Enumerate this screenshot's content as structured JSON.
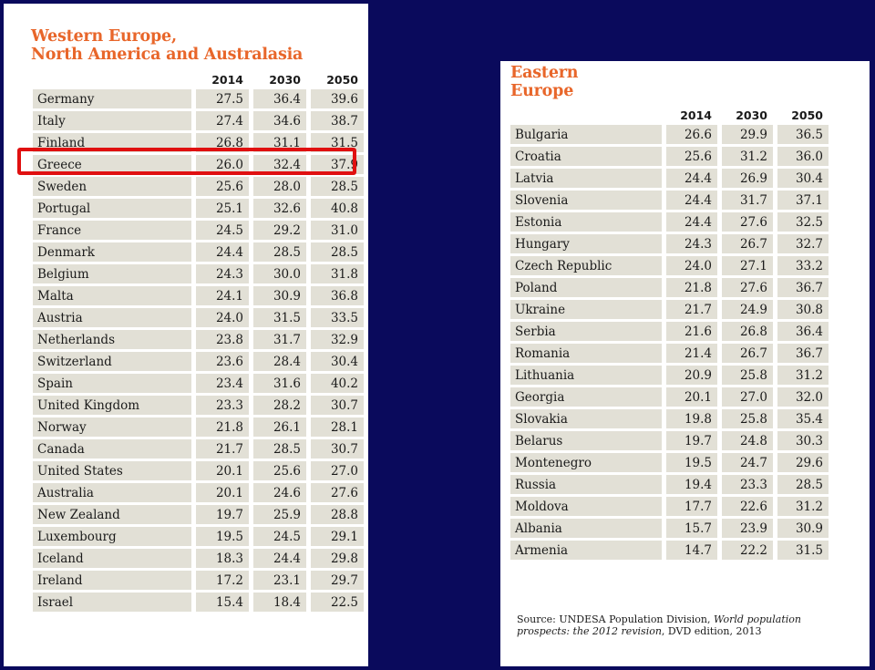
{
  "western": {
    "title_line1": "Western Europe,",
    "title_line2": "North America and Australasia",
    "years": [
      "2014",
      "2030",
      "2050"
    ],
    "rows": [
      {
        "country": "Germany",
        "v2014": "27.5",
        "v2030": "36.4",
        "v2050": "39.6"
      },
      {
        "country": "Italy",
        "v2014": "27.4",
        "v2030": "34.6",
        "v2050": "38.7"
      },
      {
        "country": "Finland",
        "v2014": "26.8",
        "v2030": "31.1",
        "v2050": "31.5"
      },
      {
        "country": "Greece",
        "v2014": "26.0",
        "v2030": "32.4",
        "v2050": "37.9"
      },
      {
        "country": "Sweden",
        "v2014": "25.6",
        "v2030": "28.0",
        "v2050": "28.5"
      },
      {
        "country": "Portugal",
        "v2014": "25.1",
        "v2030": "32.6",
        "v2050": "40.8"
      },
      {
        "country": "France",
        "v2014": "24.5",
        "v2030": "29.2",
        "v2050": "31.0"
      },
      {
        "country": "Denmark",
        "v2014": "24.4",
        "v2030": "28.5",
        "v2050": "28.5"
      },
      {
        "country": "Belgium",
        "v2014": "24.3",
        "v2030": "30.0",
        "v2050": "31.8"
      },
      {
        "country": "Malta",
        "v2014": "24.1",
        "v2030": "30.9",
        "v2050": "36.8"
      },
      {
        "country": "Austria",
        "v2014": "24.0",
        "v2030": "31.5",
        "v2050": "33.5"
      },
      {
        "country": "Netherlands",
        "v2014": "23.8",
        "v2030": "31.7",
        "v2050": "32.9"
      },
      {
        "country": "Switzerland",
        "v2014": "23.6",
        "v2030": "28.4",
        "v2050": "30.4"
      },
      {
        "country": "Spain",
        "v2014": "23.4",
        "v2030": "31.6",
        "v2050": "40.2"
      },
      {
        "country": "United Kingdom",
        "v2014": "23.3",
        "v2030": "28.2",
        "v2050": "30.7"
      },
      {
        "country": "Norway",
        "v2014": "21.8",
        "v2030": "26.1",
        "v2050": "28.1"
      },
      {
        "country": "Canada",
        "v2014": "21.7",
        "v2030": "28.5",
        "v2050": "30.7"
      },
      {
        "country": "United States",
        "v2014": "20.1",
        "v2030": "25.6",
        "v2050": "27.0"
      },
      {
        "country": "Australia",
        "v2014": "20.1",
        "v2030": "24.6",
        "v2050": "27.6"
      },
      {
        "country": "New Zealand",
        "v2014": "19.7",
        "v2030": "25.9",
        "v2050": "28.8"
      },
      {
        "country": "Luxembourg",
        "v2014": "19.5",
        "v2030": "24.5",
        "v2050": "29.1"
      },
      {
        "country": "Iceland",
        "v2014": "18.3",
        "v2030": "24.4",
        "v2050": "29.8"
      },
      {
        "country": "Ireland",
        "v2014": "17.2",
        "v2030": "23.1",
        "v2050": "29.7"
      },
      {
        "country": "Israel",
        "v2014": "15.4",
        "v2030": "18.4",
        "v2050": "22.5"
      }
    ]
  },
  "eastern": {
    "title_line1": "Eastern",
    "title_line2": "Europe",
    "years": [
      "2014",
      "2030",
      "2050"
    ],
    "rows": [
      {
        "country": "Bulgaria",
        "v2014": "26.6",
        "v2030": "29.9",
        "v2050": "36.5"
      },
      {
        "country": "Croatia",
        "v2014": "25.6",
        "v2030": "31.2",
        "v2050": "36.0"
      },
      {
        "country": "Latvia",
        "v2014": "24.4",
        "v2030": "26.9",
        "v2050": "30.4"
      },
      {
        "country": "Slovenia",
        "v2014": "24.4",
        "v2030": "31.7",
        "v2050": "37.1"
      },
      {
        "country": "Estonia",
        "v2014": "24.4",
        "v2030": "27.6",
        "v2050": "32.5"
      },
      {
        "country": "Hungary",
        "v2014": "24.3",
        "v2030": "26.7",
        "v2050": "32.7"
      },
      {
        "country": "Czech Republic",
        "v2014": "24.0",
        "v2030": "27.1",
        "v2050": "33.2"
      },
      {
        "country": "Poland",
        "v2014": "21.8",
        "v2030": "27.6",
        "v2050": "36.7"
      },
      {
        "country": "Ukraine",
        "v2014": "21.7",
        "v2030": "24.9",
        "v2050": "30.8"
      },
      {
        "country": "Serbia",
        "v2014": "21.6",
        "v2030": "26.8",
        "v2050": "36.4"
      },
      {
        "country": "Romania",
        "v2014": "21.4",
        "v2030": "26.7",
        "v2050": "36.7"
      },
      {
        "country": "Lithuania",
        "v2014": "20.9",
        "v2030": "25.8",
        "v2050": "31.2"
      },
      {
        "country": "Georgia",
        "v2014": "20.1",
        "v2030": "27.0",
        "v2050": "32.0"
      },
      {
        "country": "Slovakia",
        "v2014": "19.8",
        "v2030": "25.8",
        "v2050": "35.4"
      },
      {
        "country": "Belarus",
        "v2014": "19.7",
        "v2030": "24.8",
        "v2050": "30.3"
      },
      {
        "country": "Montenegro",
        "v2014": "19.5",
        "v2030": "24.7",
        "v2050": "29.6"
      },
      {
        "country": "Russia",
        "v2014": "19.4",
        "v2030": "23.3",
        "v2050": "28.5"
      },
      {
        "country": "Moldova",
        "v2014": "17.7",
        "v2030": "22.6",
        "v2050": "31.2"
      },
      {
        "country": "Albania",
        "v2014": "15.7",
        "v2030": "23.9",
        "v2050": "30.9"
      },
      {
        "country": "Armenia",
        "v2014": "14.7",
        "v2030": "22.2",
        "v2050": "31.5"
      }
    ]
  },
  "source": {
    "prefix": "Source: UNDESA Population Division, ",
    "italic": "World population prospects: the 2012 revision",
    "suffix": ", DVD edition, 2013"
  },
  "colors": {
    "background": "#0a0a5c",
    "title": "#e8662a",
    "row_shade": "#e2e0d6",
    "highlight": "#e01010"
  }
}
